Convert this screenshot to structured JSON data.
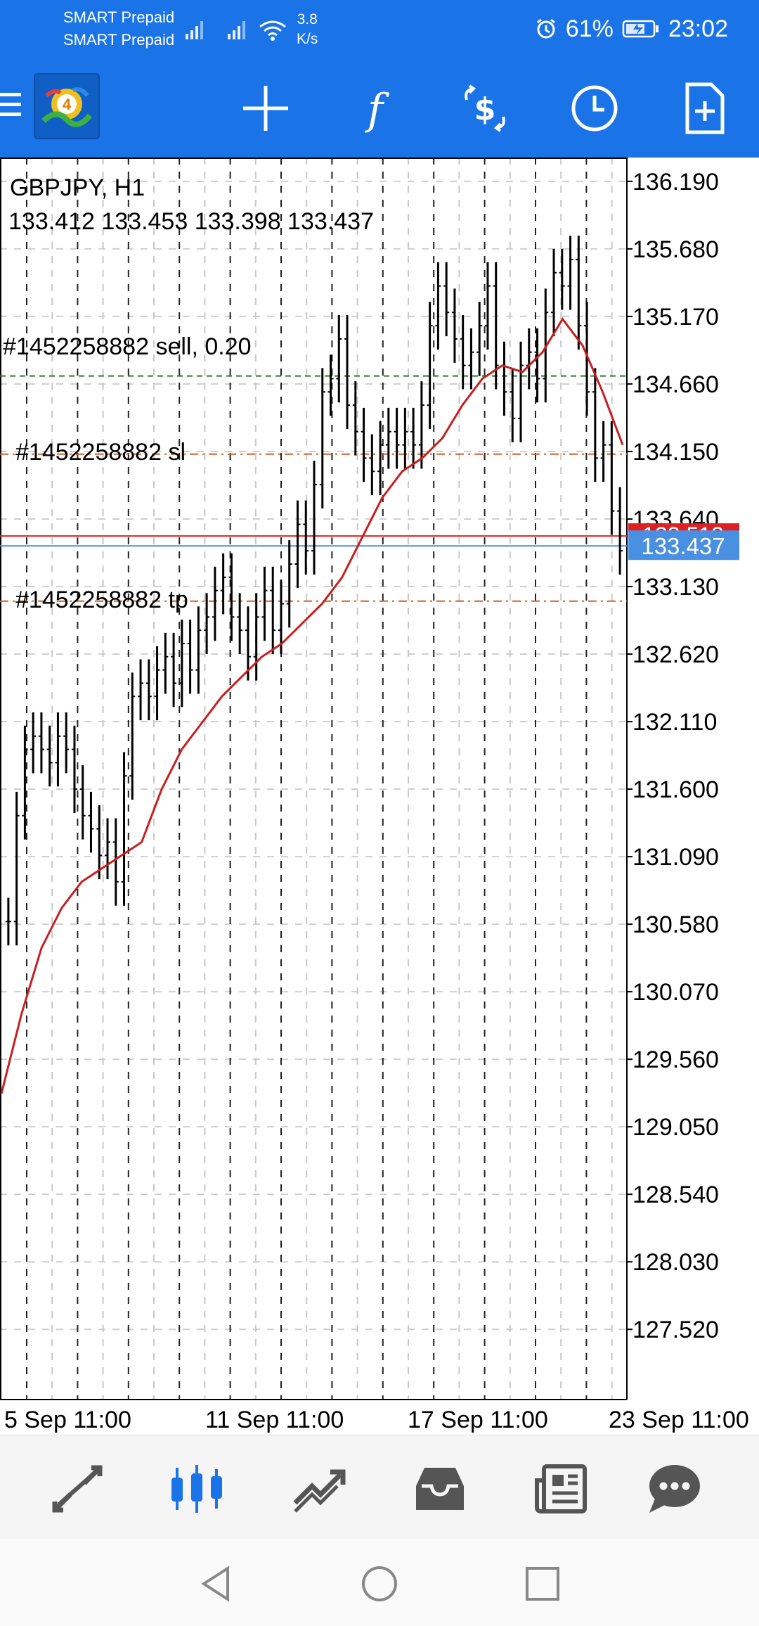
{
  "status_bar": {
    "carrier_1": "SMART Prepaid",
    "carrier_2": "SMART Prepaid",
    "speed_value": "3.8",
    "speed_unit": "K/s",
    "battery": "61%",
    "time": "23:02",
    "icons": [
      "signal-icon",
      "signal-icon",
      "wifi-icon",
      "alarm-icon",
      "battery-charging-icon"
    ]
  },
  "app_bar": {
    "icons": [
      "menu-icon",
      "metatrader-logo",
      "crosshair-icon",
      "indicators-icon",
      "trade-icon",
      "timeframe-icon",
      "new-order-icon"
    ]
  },
  "chart": {
    "symbol_label": "GBPJPY, H1",
    "ohlc_label": "133.412 133.453 133.398 133.437",
    "sell_label": "#1452258882 sell, 0.20",
    "sl_label": "#1452258882 sl",
    "tp_label": "#1452258882 tp",
    "ask_price": "133.512",
    "bid_price": "133.437"
  },
  "chart_data": {
    "type": "candlestick",
    "symbol": "GBPJPY",
    "timeframe": "H1",
    "y_ticks": [
      "136.190",
      "135.680",
      "135.170",
      "134.660",
      "134.150",
      "133.640",
      "133.130",
      "132.620",
      "132.110",
      "131.600",
      "131.090",
      "130.580",
      "130.070",
      "129.560",
      "129.050",
      "128.540",
      "128.030",
      "127.520"
    ],
    "x_ticks": [
      "5 Sep 11:00",
      "11 Sep 11:00",
      "17 Sep 11:00",
      "23 Sep 11:00"
    ],
    "ylim": [
      126.99,
      136.37
    ],
    "levels": {
      "sell_entry": 134.72,
      "stop_loss": 134.13,
      "take_profit": 133.02,
      "ask": 133.512,
      "bid": 133.437
    },
    "moving_average_color": "#c62020",
    "bid_line_color": "#4a90e2",
    "ask_line_color": "#e02020",
    "closes": [
      130.6,
      131.4,
      131.9,
      132.0,
      131.9,
      131.8,
      132.0,
      131.9,
      131.6,
      131.4,
      131.3,
      131.1,
      131.2,
      130.9,
      131.7,
      132.3,
      132.4,
      132.3,
      132.5,
      132.6,
      132.4,
      132.7,
      132.5,
      132.8,
      132.9,
      133.1,
      133.2,
      132.9,
      132.8,
      132.6,
      132.9,
      133.1,
      132.8,
      133.0,
      133.3,
      133.6,
      133.4,
      133.9,
      134.6,
      134.7,
      135.0,
      134.5,
      134.3,
      134.1,
      134.0,
      134.2,
      134.3,
      134.2,
      134.3,
      134.2,
      134.5,
      135.1,
      135.4,
      135.2,
      135.0,
      134.8,
      134.9,
      135.1,
      135.4,
      134.8,
      134.6,
      134.4,
      134.8,
      134.9,
      134.7,
      135.2,
      135.5,
      135.4,
      135.6,
      135.1,
      134.6,
      134.1,
      134.2,
      133.7,
      133.4
    ],
    "ma": [
      129.3,
      129.9,
      130.4,
      130.7,
      130.9,
      131.0,
      131.1,
      131.2,
      131.6,
      131.9,
      132.1,
      132.3,
      132.45,
      132.6,
      132.7,
      132.85,
      133.0,
      133.2,
      133.5,
      133.8,
      134.0,
      134.1,
      134.25,
      134.5,
      134.7,
      134.8,
      134.75,
      134.9,
      135.15,
      134.95,
      134.6,
      134.2
    ]
  },
  "bottom_nav": {
    "items": [
      "quotes-icon",
      "chart-icon",
      "trade-icon",
      "history-icon",
      "news-icon",
      "chat-icon"
    ],
    "active": "chart-icon"
  }
}
